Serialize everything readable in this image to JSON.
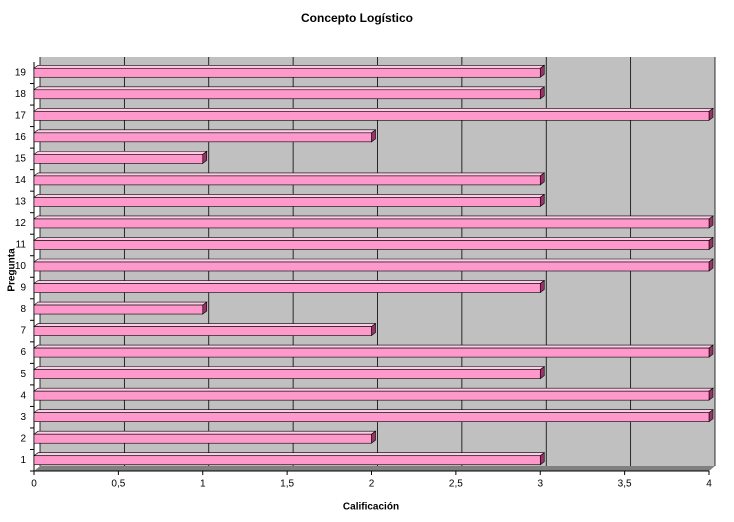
{
  "chart_data": {
    "type": "hbar",
    "title": "Concepto Logístico",
    "x_label": "Calificación",
    "y_label": "Pregunta",
    "categories": [
      "1",
      "2",
      "3",
      "4",
      "5",
      "6",
      "7",
      "8",
      "9",
      "10",
      "11",
      "12",
      "13",
      "14",
      "15",
      "16",
      "17",
      "18",
      "19"
    ],
    "values": [
      3,
      2,
      4,
      4,
      3,
      4,
      2,
      1,
      3,
      4,
      4,
      4,
      3,
      3,
      1,
      2,
      4,
      3,
      3
    ],
    "color": "#ff99cc",
    "xlim": [
      0,
      4
    ],
    "xticks": [
      0,
      {
        "value": 0.5,
        "label": "0,5"
      },
      1,
      {
        "value": 1.5,
        "label": "1,5"
      },
      2,
      {
        "value": 2.5,
        "label": "2,5"
      },
      3,
      {
        "value": 3.5,
        "label": "3,5"
      },
      4
    ],
    "grid": true
  }
}
